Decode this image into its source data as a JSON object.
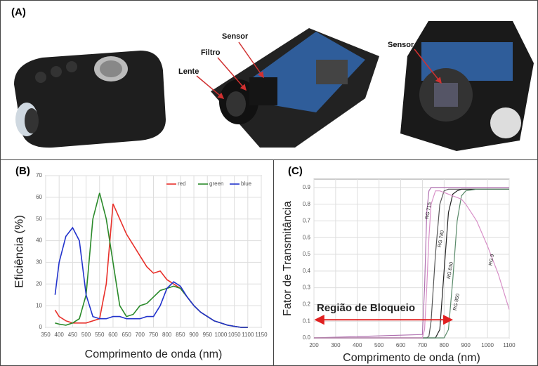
{
  "panels": {
    "a": "(A)",
    "b": "(B)",
    "c": "(C)"
  },
  "photo_labels": [
    "Lente",
    "Filtro",
    "Sensor",
    "Sensor"
  ],
  "chart_data": [
    {
      "type": "line",
      "xlabel": "Comprimento de onda (nm)",
      "ylabel": "Eficiência (%)",
      "x": [
        385,
        400,
        425,
        450,
        475,
        500,
        525,
        550,
        575,
        600,
        625,
        650,
        675,
        700,
        725,
        750,
        775,
        800,
        825,
        850,
        875,
        900,
        925,
        950,
        975,
        1000,
        1025,
        1050,
        1075,
        1100
      ],
      "series": [
        {
          "name": "red",
          "color": "#e8302a",
          "values": [
            8,
            5,
            3,
            2,
            2,
            2,
            3,
            4,
            20,
            57,
            50,
            43,
            38,
            33,
            28,
            25,
            26,
            22,
            20,
            18,
            14,
            10,
            7,
            5,
            3,
            2,
            1,
            0.5,
            0,
            0
          ]
        },
        {
          "name": "green",
          "color": "#2a8a2a",
          "values": [
            2,
            1.5,
            1,
            2,
            4,
            15,
            50,
            62,
            50,
            30,
            10,
            5,
            6,
            10,
            11,
            14,
            17,
            18,
            19,
            18,
            14,
            10,
            7,
            5,
            3,
            2,
            1,
            0.5,
            0,
            0
          ]
        },
        {
          "name": "blue",
          "color": "#2233cc",
          "values": [
            15,
            30,
            42,
            46,
            40,
            15,
            5,
            4,
            4,
            5,
            5,
            4,
            4,
            4,
            5,
            5,
            10,
            18,
            21,
            19,
            14,
            10,
            7,
            5,
            3,
            2,
            1,
            0.5,
            0,
            0
          ]
        }
      ],
      "xlim": [
        350,
        1150
      ],
      "xticks": [
        350,
        400,
        450,
        500,
        550,
        600,
        650,
        700,
        750,
        800,
        850,
        900,
        950,
        1000,
        1050,
        1100,
        1150
      ],
      "ylim": [
        0,
        70
      ],
      "yticks": [
        0,
        10,
        20,
        30,
        40,
        50,
        60,
        70
      ],
      "grid": true,
      "legend": "top-right"
    },
    {
      "type": "line",
      "xlabel": "Comprimento de onda (nm)",
      "ylabel": "Fator de Transmitância",
      "annotation": "Região de Bloqueio",
      "annotation_range": [
        200,
        830
      ],
      "x": [
        200,
        700,
        710,
        720,
        730,
        740,
        760,
        780,
        800,
        820,
        840,
        860,
        880,
        900,
        950,
        1000,
        1050,
        1100
      ],
      "series": [
        {
          "name": "RG 715",
          "color": "#b070b0",
          "values": [
            0,
            0.02,
            0.3,
            0.75,
            0.88,
            0.9,
            0.9,
            0.9,
            0.9,
            0.9,
            0.9,
            0.9,
            0.9,
            0.9,
            0.9,
            0.9,
            0.9,
            0.9
          ]
        },
        {
          "name": "RG 780",
          "color": "#555555",
          "values": [
            0,
            0,
            0,
            0,
            0.01,
            0.1,
            0.5,
            0.8,
            0.88,
            0.89,
            0.89,
            0.89,
            0.89,
            0.89,
            0.89,
            0.89,
            0.89,
            0.89
          ]
        },
        {
          "name": "RG 830",
          "color": "#222222",
          "values": [
            0,
            0,
            0,
            0,
            0,
            0,
            0,
            0.05,
            0.4,
            0.75,
            0.86,
            0.88,
            0.89,
            0.89,
            0.89,
            0.89,
            0.89,
            0.89
          ]
        },
        {
          "name": "RG 850",
          "color": "#5a8a6a",
          "values": [
            0,
            0,
            0,
            0,
            0,
            0,
            0,
            0,
            0,
            0.05,
            0.35,
            0.7,
            0.85,
            0.88,
            0.89,
            0.89,
            0.89,
            0.89
          ]
        },
        {
          "name": "RG 9",
          "color": "#d890c8",
          "values": [
            0,
            0,
            0.05,
            0.3,
            0.6,
            0.8,
            0.88,
            0.88,
            0.87,
            0.86,
            0.85,
            0.84,
            0.83,
            0.8,
            0.7,
            0.55,
            0.38,
            0.17
          ]
        }
      ],
      "xlim": [
        200,
        1100
      ],
      "xticks": [
        200,
        300,
        400,
        500,
        600,
        700,
        800,
        900,
        1000,
        1100
      ],
      "ylim": [
        0,
        0.95
      ],
      "yticks": [
        {
          "value": 0,
          "label": "0.0"
        },
        0.1,
        0.2,
        0.3,
        0.4,
        0.5,
        0.6,
        0.7,
        0.8,
        0.9
      ],
      "grid": true
    }
  ]
}
